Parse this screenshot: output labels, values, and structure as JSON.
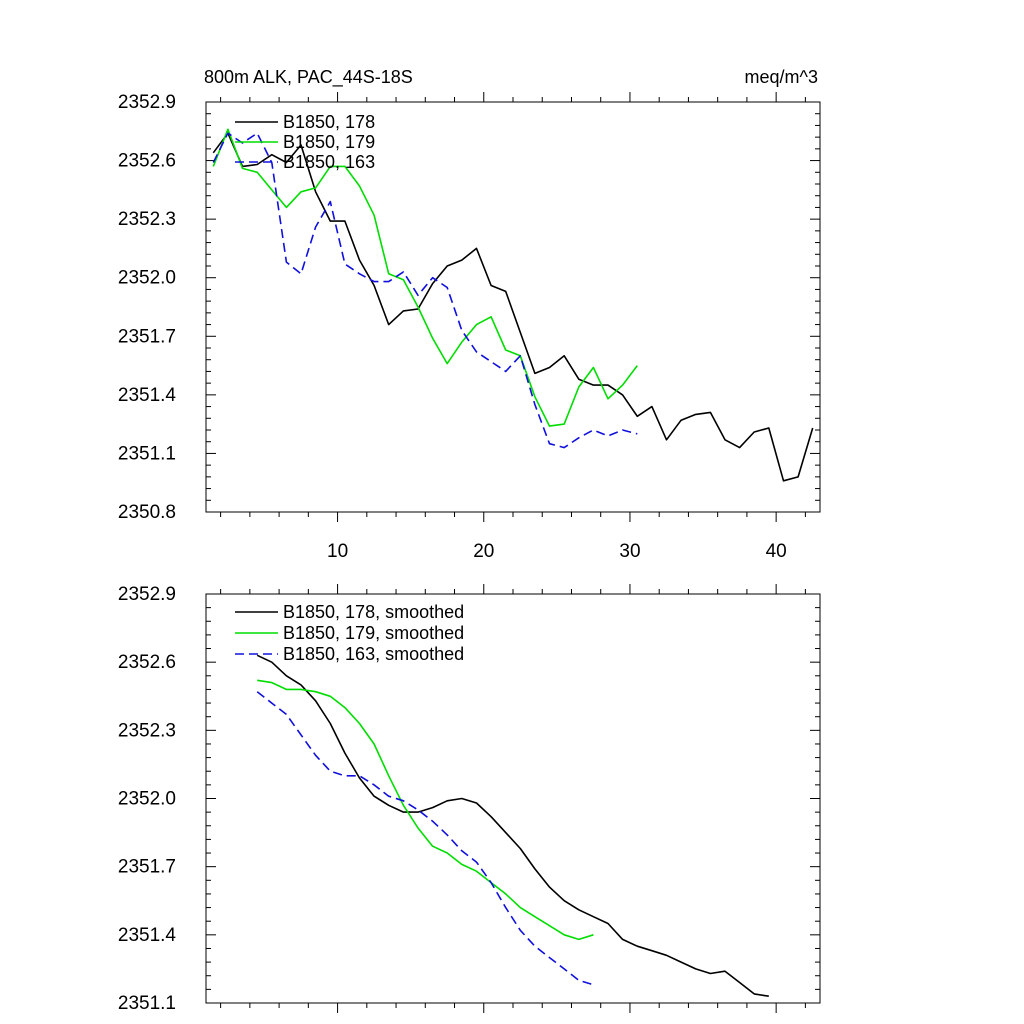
{
  "chart_data": [
    {
      "type": "line",
      "title_left": "800m ALK, PAC_44S-18S",
      "title_right": "meq/m^3",
      "xlabel": "",
      "ylabel": "",
      "xlim": [
        1,
        43
      ],
      "ylim": [
        2350.8,
        2352.9
      ],
      "yticks": [
        "2352.9",
        "2352.6",
        "2352.3",
        "2352.0",
        "2351.7",
        "2351.4",
        "2351.1",
        "2350.8"
      ],
      "xticks": [
        "10",
        "20",
        "30",
        "40"
      ],
      "legend_position": "top-left",
      "series": [
        {
          "name": "B1850, 178",
          "color": "#000000",
          "dash": "solid",
          "x": [
            1.5,
            2.5,
            3.5,
            4.5,
            5.5,
            6.5,
            7.5,
            8.5,
            9.5,
            10.5,
            11.5,
            12.5,
            13.5,
            14.5,
            15.5,
            16.5,
            17.5,
            18.5,
            19.5,
            20.5,
            21.5,
            22.5,
            23.5,
            24.5,
            25.5,
            26.5,
            27.5,
            28.5,
            29.5,
            30.5,
            31.5,
            32.5,
            33.5,
            34.5,
            35.5,
            36.5,
            37.5,
            38.5,
            39.5,
            40.5,
            41.5,
            42.5
          ],
          "values": [
            2352.64,
            2352.74,
            2352.57,
            2352.58,
            2352.63,
            2352.59,
            2352.68,
            2352.44,
            2352.29,
            2352.29,
            2352.09,
            2351.96,
            2351.76,
            2351.83,
            2351.84,
            2351.97,
            2352.06,
            2352.09,
            2352.15,
            2351.96,
            2351.93,
            2351.72,
            2351.51,
            2351.54,
            2351.6,
            2351.48,
            2351.45,
            2351.45,
            2351.4,
            2351.29,
            2351.34,
            2351.17,
            2351.27,
            2351.3,
            2351.31,
            2351.17,
            2351.13,
            2351.21,
            2351.23,
            2350.96,
            2350.98,
            2351.23
          ]
        },
        {
          "name": "B1850, 179",
          "color": "#00dd00",
          "dash": "solid",
          "x": [
            1.5,
            2.5,
            3.5,
            4.5,
            5.5,
            6.5,
            7.5,
            8.5,
            9.5,
            10.5,
            11.5,
            12.5,
            13.5,
            14.5,
            15.5,
            16.5,
            17.5,
            18.5,
            19.5,
            20.5,
            21.5,
            22.5,
            23.5,
            24.5,
            25.5,
            26.5,
            27.5,
            28.5,
            29.5,
            30.5
          ],
          "values": [
            2352.57,
            2352.76,
            2352.56,
            2352.54,
            2352.45,
            2352.36,
            2352.44,
            2352.46,
            2352.57,
            2352.57,
            2352.47,
            2352.32,
            2352.02,
            2351.99,
            2351.85,
            2351.69,
            2351.56,
            2351.67,
            2351.76,
            2351.8,
            2351.63,
            2351.6,
            2351.39,
            2351.24,
            2351.25,
            2351.44,
            2351.54,
            2351.38,
            2351.45,
            2351.55
          ]
        },
        {
          "name": "B1850, 163",
          "color": "#1010dd",
          "dash": "dashed",
          "x": [
            1.5,
            2.5,
            3.5,
            4.5,
            5.5,
            6.5,
            7.5,
            8.5,
            9.5,
            10.5,
            11.5,
            12.5,
            13.5,
            14.5,
            15.5,
            16.5,
            17.5,
            18.5,
            19.5,
            20.5,
            21.5,
            22.5,
            23.5,
            24.5,
            25.5,
            26.5,
            27.5,
            28.5,
            29.5,
            30.5
          ],
          "values": [
            2352.59,
            2352.74,
            2352.69,
            2352.74,
            2352.59,
            2352.08,
            2352.02,
            2352.26,
            2352.39,
            2352.07,
            2352.02,
            2351.98,
            2351.98,
            2352.03,
            2351.91,
            2352.0,
            2351.95,
            2351.73,
            2351.62,
            2351.57,
            2351.52,
            2351.6,
            2351.35,
            2351.15,
            2351.13,
            2351.18,
            2351.22,
            2351.19,
            2351.22,
            2351.2
          ]
        }
      ]
    },
    {
      "type": "line",
      "title_left": "",
      "title_right": "",
      "xlabel": "",
      "ylabel": "",
      "xlim": [
        1,
        43
      ],
      "ylim": [
        2351.1,
        2352.9
      ],
      "yticks": [
        "2352.9",
        "2352.6",
        "2352.3",
        "2352.0",
        "2351.7",
        "2351.4",
        "2351.1"
      ],
      "xticks": [],
      "legend_position": "top-left",
      "series": [
        {
          "name": "B1850, 178, smoothed",
          "color": "#000000",
          "dash": "solid",
          "x": [
            4.5,
            5.5,
            6.5,
            7.5,
            8.5,
            9.5,
            10.5,
            11.5,
            12.5,
            13.5,
            14.5,
            15.5,
            16.5,
            17.5,
            18.5,
            19.5,
            20.5,
            21.5,
            22.5,
            23.5,
            24.5,
            25.5,
            26.5,
            27.5,
            28.5,
            29.5,
            30.5,
            31.5,
            32.5,
            33.5,
            34.5,
            35.5,
            36.5,
            37.5,
            38.5,
            39.5
          ],
          "values": [
            2352.63,
            2352.6,
            2352.54,
            2352.5,
            2352.43,
            2352.33,
            2352.2,
            2352.09,
            2352.01,
            2351.97,
            2351.94,
            2351.94,
            2351.96,
            2351.99,
            2352.0,
            2351.98,
            2351.92,
            2351.85,
            2351.78,
            2351.69,
            2351.61,
            2351.55,
            2351.51,
            2351.48,
            2351.45,
            2351.38,
            2351.35,
            2351.33,
            2351.31,
            2351.28,
            2351.25,
            2351.23,
            2351.24,
            2351.19,
            2351.14,
            2351.13
          ]
        },
        {
          "name": "B1850, 179, smoothed",
          "color": "#00dd00",
          "dash": "solid",
          "x": [
            4.5,
            5.5,
            6.5,
            7.5,
            8.5,
            9.5,
            10.5,
            11.5,
            12.5,
            13.5,
            14.5,
            15.5,
            16.5,
            17.5,
            18.5,
            19.5,
            20.5,
            21.5,
            22.5,
            23.5,
            24.5,
            25.5,
            26.5,
            27.5
          ],
          "values": [
            2352.52,
            2352.51,
            2352.48,
            2352.48,
            2352.47,
            2352.45,
            2352.4,
            2352.33,
            2352.24,
            2352.1,
            2351.97,
            2351.87,
            2351.79,
            2351.76,
            2351.71,
            2351.68,
            2351.63,
            2351.58,
            2351.52,
            2351.48,
            2351.44,
            2351.4,
            2351.38,
            2351.4
          ]
        },
        {
          "name": "B1850, 163, smoothed",
          "color": "#1010dd",
          "dash": "dashed",
          "x": [
            4.5,
            5.5,
            6.5,
            7.5,
            8.5,
            9.5,
            10.5,
            11.5,
            12.5,
            13.5,
            14.5,
            15.5,
            16.5,
            17.5,
            18.5,
            19.5,
            20.5,
            21.5,
            22.5,
            23.5,
            24.5,
            25.5,
            26.5,
            27.5
          ],
          "values": [
            2352.47,
            2352.42,
            2352.37,
            2352.28,
            2352.19,
            2352.12,
            2352.1,
            2352.1,
            2352.06,
            2352.01,
            2351.99,
            2351.95,
            2351.9,
            2351.84,
            2351.77,
            2351.72,
            2351.63,
            2351.52,
            2351.42,
            2351.35,
            2351.3,
            2351.25,
            2351.2,
            2351.18
          ]
        }
      ]
    }
  ]
}
